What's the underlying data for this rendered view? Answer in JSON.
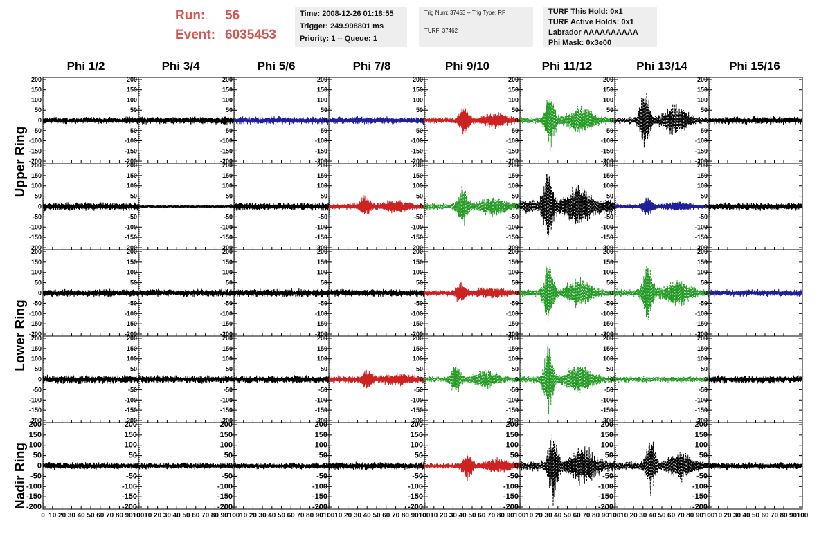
{
  "header": {
    "run_label": "Run:",
    "run_value": "56",
    "event_label": "Event:",
    "event_value": "6035453"
  },
  "info_panel_1": {
    "time": "Time: 2008-12-26 01:18:55",
    "trigger": "Trigger: 249.998801 ms",
    "priority": "Priority: 1 -- Queue: 1"
  },
  "info_panel_2": {
    "trig": "Trig Num: 37453 -- Trig Type: RF",
    "turf": "TURF: 37462"
  },
  "info_panel_3": {
    "hold": "TURF This Hold: 0x1",
    "active": "TURF Active Holds: 0x1",
    "labrador": "Labrador AAAAAAAAAA",
    "phimask": "Phi Mask: 0x3e00"
  },
  "columns": [
    "Phi 1/2",
    "Phi 3/4",
    "Phi 5/6",
    "Phi 7/8",
    "Phi 9/10",
    "Phi 11/12",
    "Phi 13/14",
    "Phi 15/16"
  ],
  "ring_labels": [
    "Upper Ring",
    "Lower Ring",
    "Nadir Ring"
  ],
  "colors": {
    "black": "#000000",
    "blue": "#1f1f99",
    "red": "#cc2222",
    "green": "#229922"
  },
  "chart_data": {
    "type": "line",
    "ylim": [
      -210,
      210
    ],
    "xlim": [
      0,
      100
    ],
    "yticks": [
      "200",
      "150",
      "100",
      "50",
      "0",
      "-50",
      "-100",
      "-150",
      "-200"
    ],
    "xticks": [
      "0",
      "10",
      "20",
      "30",
      "40",
      "50",
      "60",
      "70",
      "80",
      "90",
      "100"
    ],
    "panels": [
      [
        {
          "color": "black",
          "dashed": false,
          "amp": 20,
          "burst": null
        },
        {
          "color": "black",
          "dashed": false,
          "amp": 22,
          "burst": null
        },
        {
          "color": "blue",
          "dashed": false,
          "amp": 22,
          "burst": null
        },
        {
          "color": "blue",
          "dashed": false,
          "amp": 22,
          "burst": null
        },
        {
          "color": "red",
          "dashed": false,
          "amp": 18,
          "burst": [
            42,
            70
          ]
        },
        {
          "color": "green",
          "dashed": true,
          "amp": 20,
          "burst": [
            32,
            150
          ]
        },
        {
          "color": "black",
          "dashed": true,
          "amp": 20,
          "burst": [
            32,
            160
          ]
        },
        {
          "color": "black",
          "dashed": false,
          "amp": 22,
          "burst": null
        }
      ],
      [
        {
          "color": "black",
          "dashed": false,
          "amp": 24,
          "burst": null
        },
        {
          "color": "black",
          "dashed": false,
          "amp": 8,
          "burst": null
        },
        {
          "color": "black",
          "dashed": false,
          "amp": 22,
          "burst": null
        },
        {
          "color": "red",
          "dashed": false,
          "amp": 18,
          "burst": [
            38,
            50
          ]
        },
        {
          "color": "green",
          "dashed": true,
          "amp": 20,
          "burst": [
            40,
            95
          ]
        },
        {
          "color": "black",
          "dashed": true,
          "amp": 40,
          "burst": [
            30,
            190
          ]
        },
        {
          "color": "blue",
          "dashed": false,
          "amp": 14,
          "burst": [
            35,
            40
          ]
        },
        {
          "color": "black",
          "dashed": false,
          "amp": 22,
          "burst": null
        }
      ],
      [
        {
          "color": "black",
          "dashed": false,
          "amp": 22,
          "burst": null
        },
        {
          "color": "black",
          "dashed": false,
          "amp": 22,
          "burst": null
        },
        {
          "color": "black",
          "dashed": false,
          "amp": 24,
          "burst": null
        },
        {
          "color": "black",
          "dashed": false,
          "amp": 22,
          "burst": null
        },
        {
          "color": "red",
          "dashed": false,
          "amp": 18,
          "burst": [
            38,
            45
          ]
        },
        {
          "color": "green",
          "dashed": true,
          "amp": 22,
          "burst": [
            30,
            150
          ]
        },
        {
          "color": "green",
          "dashed": true,
          "amp": 22,
          "burst": [
            35,
            150
          ]
        },
        {
          "color": "blue",
          "dashed": false,
          "amp": 20,
          "burst": null
        }
      ],
      [
        {
          "color": "black",
          "dashed": false,
          "amp": 24,
          "burst": null
        },
        {
          "color": "black",
          "dashed": false,
          "amp": 22,
          "burst": null
        },
        {
          "color": "black",
          "dashed": false,
          "amp": 22,
          "burst": null
        },
        {
          "color": "red",
          "dashed": false,
          "amp": 22,
          "burst": [
            40,
            40
          ]
        },
        {
          "color": "green",
          "dashed": true,
          "amp": 18,
          "burst": [
            33,
            80
          ]
        },
        {
          "color": "green",
          "dashed": true,
          "amp": 22,
          "burst": [
            30,
            160
          ]
        },
        {
          "color": "green",
          "dashed": true,
          "amp": 18,
          "burst": null
        },
        {
          "color": "black",
          "dashed": false,
          "amp": 22,
          "burst": null
        }
      ],
      [
        {
          "color": "black",
          "dashed": false,
          "amp": 20,
          "burst": null
        },
        {
          "color": "black",
          "dashed": false,
          "amp": 18,
          "burst": null
        },
        {
          "color": "black",
          "dashed": false,
          "amp": 18,
          "burst": null
        },
        {
          "color": "black",
          "dashed": false,
          "amp": 22,
          "burst": null
        },
        {
          "color": "red",
          "dashed": false,
          "amp": 16,
          "burst": [
            45,
            70
          ]
        },
        {
          "color": "black",
          "dashed": true,
          "amp": 30,
          "burst": [
            35,
            190
          ]
        },
        {
          "color": "black",
          "dashed": true,
          "amp": 24,
          "burst": [
            38,
            140
          ]
        },
        {
          "color": "black",
          "dashed": false,
          "amp": 20,
          "burst": null
        }
      ]
    ]
  }
}
